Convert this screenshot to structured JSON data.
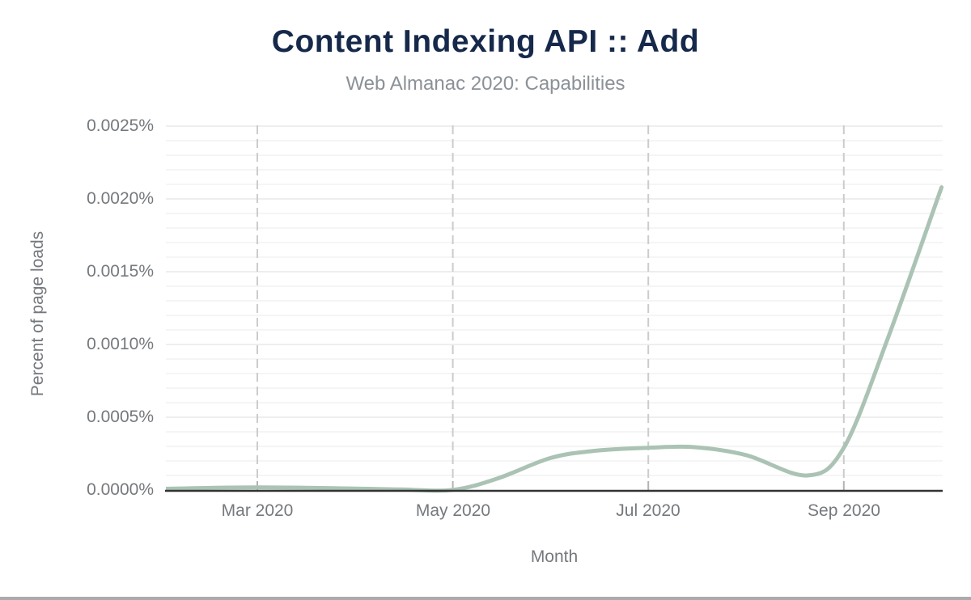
{
  "page": {
    "bottom_bar_color": "#ababab"
  },
  "chart_data": {
    "type": "line",
    "title": "Content Indexing API :: Add",
    "subtitle": "Web Almanac 2020: Capabilities",
    "xlabel": "Month",
    "ylabel": "Percent of page loads",
    "y_tick_labels": [
      "0.0025%",
      "0.0020%",
      "0.0015%",
      "0.0010%",
      "0.0005%",
      "0.0000%"
    ],
    "x_tick_labels": [
      "Mar 2020",
      "May 2020",
      "Jul 2020",
      "Sep 2020"
    ],
    "ylim_percent": [
      0,
      0.0025
    ],
    "y_major_step_percent": 0.0005,
    "y_minor_step_percent": 0.0001,
    "x_range": [
      "Feb 2020",
      "Oct 2020"
    ],
    "grid": true,
    "legend": "none",
    "series": [
      {
        "name": "Content Indexing API :: Add",
        "color": "#abc3b4",
        "points": [
          {
            "date": "2020-02-01",
            "value_percent": 8e-06
          },
          {
            "date": "2020-03-01",
            "value_percent": 1.8e-05
          },
          {
            "date": "2020-04-01",
            "value_percent": 1e-05
          },
          {
            "date": "2020-04-15",
            "value_percent": 4e-06
          },
          {
            "date": "2020-05-01",
            "value_percent": 1e-06
          },
          {
            "date": "2020-05-15",
            "value_percent": 8e-05
          },
          {
            "date": "2020-06-01",
            "value_percent": 0.00022
          },
          {
            "date": "2020-06-15",
            "value_percent": 0.00027
          },
          {
            "date": "2020-07-01",
            "value_percent": 0.00029
          },
          {
            "date": "2020-07-15",
            "value_percent": 0.000295
          },
          {
            "date": "2020-08-01",
            "value_percent": 0.00024
          },
          {
            "date": "2020-08-20",
            "value_percent": 0.0001
          },
          {
            "date": "2020-09-01",
            "value_percent": 0.00029
          },
          {
            "date": "2020-09-15",
            "value_percent": 0.00106
          },
          {
            "date": "2020-10-01",
            "value_percent": 0.00208
          }
        ]
      }
    ],
    "colors": {
      "title": "#16294b",
      "subtitle": "#8b9196",
      "axis_text": "#75797d",
      "line": "#abc3b4",
      "axis_line": "#333333",
      "major_grid": "#e9e9e9",
      "minor_grid": "#f2f2f2",
      "dashed_grid": "#cccccc",
      "tick_mark": "#b3b3b3"
    }
  }
}
